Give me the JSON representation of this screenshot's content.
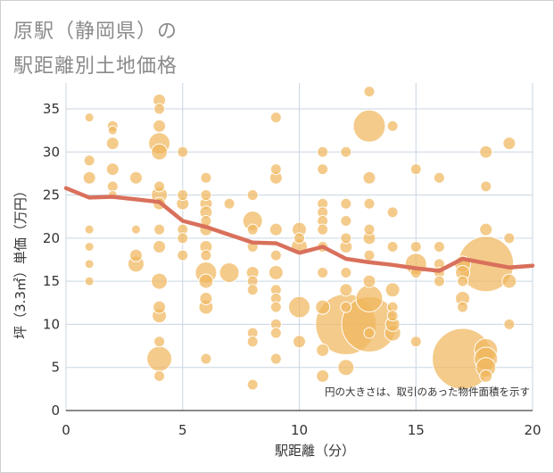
{
  "header": {
    "title_line1": "原駅（静岡県）の",
    "title_line2": "駅距離別土地価格"
  },
  "chart_data": {
    "type": "scatter",
    "xlabel": "駅距離（分）",
    "ylabel": "坪（3.3㎡）単価（万円）",
    "xlim": [
      0,
      20
    ],
    "ylim": [
      0,
      38
    ],
    "xticks": [
      0,
      5,
      10,
      15,
      20
    ],
    "yticks": [
      0,
      5,
      10,
      15,
      20,
      25,
      30,
      35
    ],
    "grid": true,
    "note": "円の大きさは、取引のあった物件面積を示す",
    "colors": {
      "bubble": "#f0b75e",
      "trend": "#d9705c",
      "grid": "#c9d6e2",
      "background": "#ffffff"
    },
    "series": [
      {
        "kind": "bubble",
        "points": [
          [
            1,
            34,
            5
          ],
          [
            1,
            29,
            6
          ],
          [
            1,
            27,
            7
          ],
          [
            1,
            21,
            5
          ],
          [
            1,
            19,
            5
          ],
          [
            1,
            17,
            5
          ],
          [
            1,
            15,
            5
          ],
          [
            2,
            33,
            6
          ],
          [
            2,
            32.5,
            5
          ],
          [
            2,
            31,
            7
          ],
          [
            2,
            28,
            7
          ],
          [
            2,
            26,
            6
          ],
          [
            2,
            25,
            5
          ],
          [
            3,
            27,
            7
          ],
          [
            3,
            21,
            5
          ],
          [
            3,
            18,
            7
          ],
          [
            3,
            17,
            9
          ],
          [
            4,
            36,
            7
          ],
          [
            4,
            35,
            6
          ],
          [
            4,
            33,
            7
          ],
          [
            4,
            31,
            12
          ],
          [
            4,
            30,
            9
          ],
          [
            4,
            26,
            6
          ],
          [
            4,
            25,
            9
          ],
          [
            4,
            24,
            7
          ],
          [
            4,
            21,
            6
          ],
          [
            4,
            19,
            7
          ],
          [
            4,
            15,
            9
          ],
          [
            4,
            12,
            7
          ],
          [
            4,
            11,
            8
          ],
          [
            4,
            8,
            6
          ],
          [
            4,
            6,
            14
          ],
          [
            4,
            4,
            6
          ],
          [
            5,
            30,
            6
          ],
          [
            5,
            25,
            6
          ],
          [
            5,
            24,
            7
          ],
          [
            5,
            21,
            6
          ],
          [
            5,
            20,
            6
          ],
          [
            5,
            18,
            6
          ],
          [
            6,
            27,
            6
          ],
          [
            6,
            25,
            6
          ],
          [
            6,
            24,
            7
          ],
          [
            6,
            23,
            7
          ],
          [
            6,
            22,
            6
          ],
          [
            6,
            21,
            7
          ],
          [
            6,
            19,
            7
          ],
          [
            6,
            18,
            6
          ],
          [
            6,
            16,
            12
          ],
          [
            6,
            15,
            8
          ],
          [
            6,
            13,
            7
          ],
          [
            6,
            12,
            8
          ],
          [
            6,
            6,
            6
          ],
          [
            7,
            24,
            6
          ],
          [
            7,
            16,
            11
          ],
          [
            8,
            25,
            6
          ],
          [
            8,
            22,
            11
          ],
          [
            8,
            21,
            6
          ],
          [
            8,
            19,
            6
          ],
          [
            8,
            16,
            7
          ],
          [
            8,
            15,
            6
          ],
          [
            8,
            14,
            6
          ],
          [
            8,
            9,
            6
          ],
          [
            8,
            8,
            6
          ],
          [
            8,
            3,
            6
          ],
          [
            9,
            34,
            6
          ],
          [
            9,
            28,
            6
          ],
          [
            9,
            27,
            7
          ],
          [
            9,
            21,
            7
          ],
          [
            9,
            18,
            6
          ],
          [
            9,
            16,
            8
          ],
          [
            9,
            14,
            6
          ],
          [
            9,
            13,
            6
          ],
          [
            9,
            12,
            6
          ],
          [
            9,
            10,
            6
          ],
          [
            9,
            9,
            6
          ],
          [
            9,
            6,
            6
          ],
          [
            10,
            21,
            8
          ],
          [
            10,
            20,
            6
          ],
          [
            10,
            19,
            9
          ],
          [
            10,
            12,
            12
          ],
          [
            10,
            8,
            7
          ],
          [
            11,
            30,
            6
          ],
          [
            11,
            28,
            6
          ],
          [
            11,
            24,
            6
          ],
          [
            11,
            23,
            6
          ],
          [
            11,
            22,
            6
          ],
          [
            11,
            21,
            6
          ],
          [
            11,
            19,
            6
          ],
          [
            11,
            16,
            6
          ],
          [
            11,
            12,
            8
          ],
          [
            11,
            7,
            7
          ],
          [
            11,
            4,
            7
          ],
          [
            12,
            30,
            6
          ],
          [
            12,
            24,
            6
          ],
          [
            12,
            22,
            6
          ],
          [
            12,
            20,
            6
          ],
          [
            12,
            19,
            7
          ],
          [
            12,
            16,
            6
          ],
          [
            12,
            14,
            7
          ],
          [
            12,
            12,
            6
          ],
          [
            12,
            10,
            34
          ],
          [
            12,
            5,
            9
          ],
          [
            13,
            37,
            6
          ],
          [
            13,
            33,
            18
          ],
          [
            13,
            27,
            7
          ],
          [
            13,
            24,
            6
          ],
          [
            13,
            21,
            6
          ],
          [
            13,
            20,
            7
          ],
          [
            13,
            18,
            6
          ],
          [
            13,
            15,
            7
          ],
          [
            13,
            13,
            15
          ],
          [
            13,
            10,
            31
          ],
          [
            13,
            9,
            6
          ],
          [
            14,
            33,
            6
          ],
          [
            14,
            23,
            6
          ],
          [
            14,
            19,
            6
          ],
          [
            14,
            14,
            8
          ],
          [
            14,
            12,
            6
          ],
          [
            14,
            11,
            6
          ],
          [
            14,
            10,
            8
          ],
          [
            14,
            9,
            9
          ],
          [
            15,
            28,
            6
          ],
          [
            15,
            19,
            6
          ],
          [
            15,
            17,
            12
          ],
          [
            15,
            16,
            6
          ],
          [
            15,
            8,
            6
          ],
          [
            16,
            27,
            6
          ],
          [
            16,
            19,
            6
          ],
          [
            16,
            17,
            6
          ],
          [
            16,
            16,
            6
          ],
          [
            16,
            15,
            6
          ],
          [
            17,
            17,
            9
          ],
          [
            17,
            16,
            8
          ],
          [
            17,
            15,
            6
          ],
          [
            17,
            13,
            8
          ],
          [
            17,
            12,
            6
          ],
          [
            17,
            6,
            34
          ],
          [
            18,
            30,
            7
          ],
          [
            18,
            26,
            6
          ],
          [
            18,
            21,
            7
          ],
          [
            18,
            17,
            31
          ],
          [
            18,
            7,
            13
          ],
          [
            18,
            6,
            13
          ],
          [
            18,
            5,
            11
          ],
          [
            18,
            4,
            7
          ],
          [
            19,
            31,
            7
          ],
          [
            19,
            20,
            6
          ],
          [
            19,
            15,
            8
          ],
          [
            19,
            10,
            6
          ]
        ]
      },
      {
        "kind": "line",
        "x": [
          0,
          1,
          2,
          3,
          4,
          5,
          6,
          7,
          8,
          9,
          10,
          11,
          12,
          13,
          14,
          15,
          16,
          17,
          18,
          19,
          20
        ],
        "y": [
          25.8,
          24.7,
          24.8,
          24.5,
          24.2,
          22.0,
          21.3,
          20.4,
          19.5,
          19.4,
          18.3,
          19.0,
          17.6,
          17.2,
          16.9,
          16.5,
          16.2,
          17.6,
          17.1,
          16.6,
          16.8
        ]
      }
    ]
  }
}
